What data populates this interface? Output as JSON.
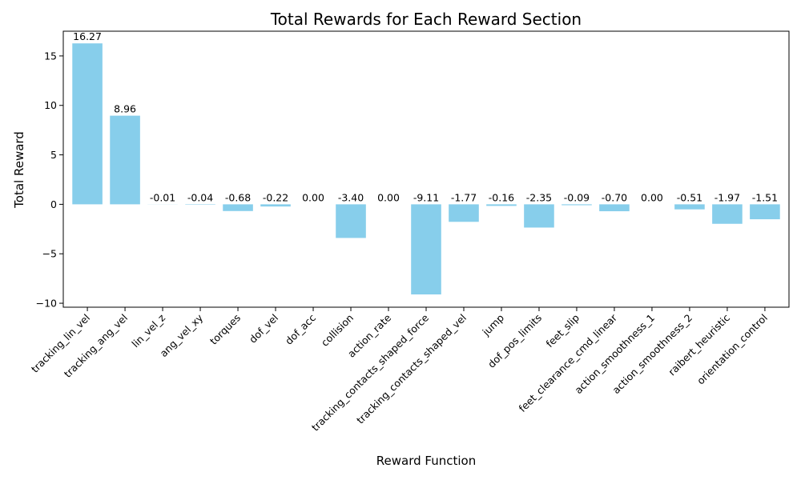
{
  "chart_data": {
    "type": "bar",
    "title": "Total Rewards for Each Reward Section",
    "xlabel": "Reward Function",
    "ylabel": "Total Reward",
    "ylim": [
      -10.4,
      17.5
    ],
    "yticks": [
      -10,
      -5,
      0,
      5,
      10,
      15
    ],
    "grid": false,
    "bar_color": "#87ceeb",
    "categories": [
      "tracking_lin_vel",
      "tracking_ang_vel",
      "lin_vel_z",
      "ang_vel_xy",
      "torques",
      "dof_vel",
      "dof_acc",
      "collision",
      "action_rate",
      "tracking_contacts_shaped_force",
      "tracking_contacts_shaped_vel",
      "jump",
      "dof_pos_limits",
      "feet_slip",
      "feet_clearance_cmd_linear",
      "action_smoothness_1",
      "action_smoothness_2",
      "raibert_heuristic",
      "orientation_control"
    ],
    "values": [
      16.27,
      8.96,
      -0.01,
      -0.04,
      -0.68,
      -0.22,
      0.0,
      -3.4,
      0.0,
      -9.11,
      -1.77,
      -0.16,
      -2.35,
      -0.09,
      -0.7,
      0.0,
      -0.51,
      -1.97,
      -1.51
    ],
    "value_labels": [
      "16.27",
      "8.96",
      "-0.01",
      "-0.04",
      "-0.68",
      "-0.22",
      "0.00",
      "-3.40",
      "0.00",
      "-9.11",
      "-1.77",
      "-0.16",
      "-2.35",
      "-0.09",
      "-0.70",
      "0.00",
      "-0.51",
      "-1.97",
      "-1.51"
    ]
  }
}
